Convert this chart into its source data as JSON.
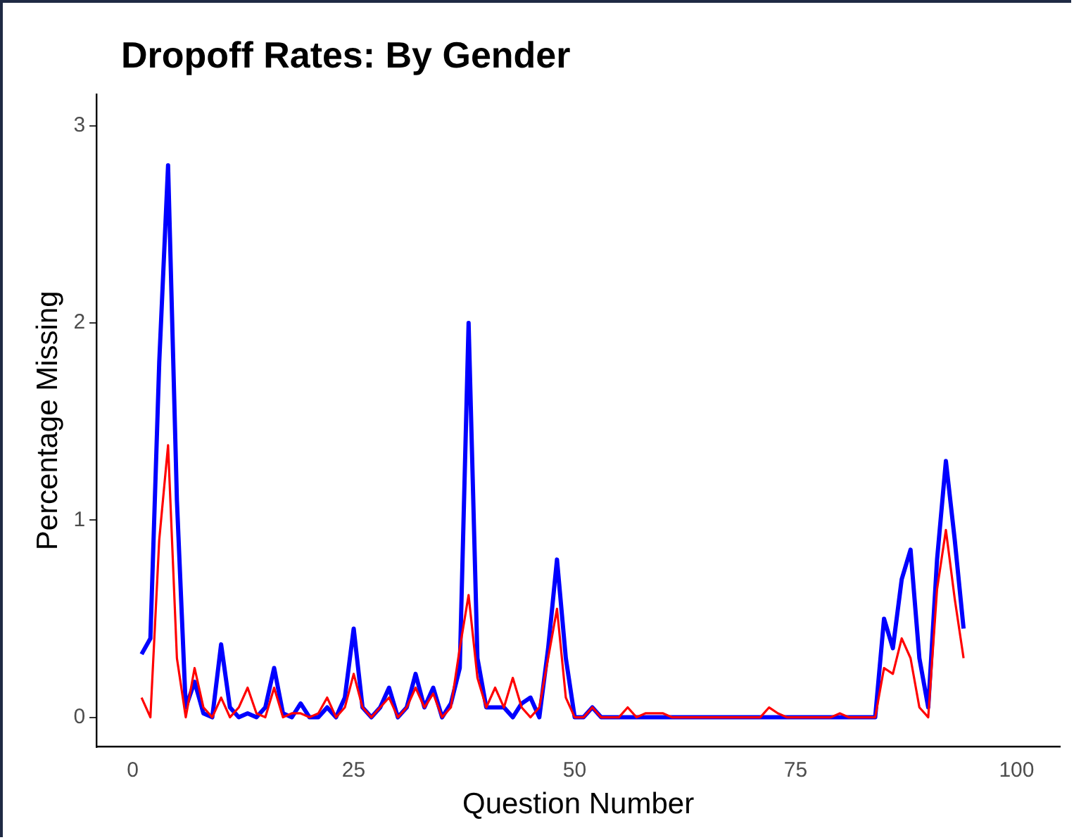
{
  "chart_data": {
    "type": "line",
    "title": "Dropoff Rates: By Gender",
    "xlabel": "Question Number",
    "ylabel": "Percentage Missing",
    "x": [
      1,
      2,
      3,
      4,
      5,
      6,
      7,
      8,
      9,
      10,
      11,
      12,
      13,
      14,
      15,
      16,
      17,
      18,
      19,
      20,
      21,
      22,
      23,
      24,
      25,
      26,
      27,
      28,
      29,
      30,
      31,
      32,
      33,
      34,
      35,
      36,
      37,
      38,
      39,
      40,
      41,
      42,
      43,
      44,
      45,
      46,
      47,
      48,
      49,
      50,
      51,
      52,
      53,
      54,
      55,
      56,
      57,
      58,
      59,
      60,
      61,
      62,
      63,
      64,
      65,
      66,
      67,
      68,
      69,
      70,
      71,
      72,
      73,
      74,
      75,
      76,
      77,
      78,
      79,
      80,
      81,
      82,
      83,
      84,
      85,
      86,
      87,
      88,
      89,
      90,
      91,
      92,
      93,
      94
    ],
    "series": [
      {
        "color": "#ff0000",
        "values": [
          0.1,
          0,
          0.9,
          1.38,
          0.3,
          0,
          0.25,
          0.05,
          0,
          0.1,
          0,
          0.05,
          0.15,
          0.02,
          0,
          0.15,
          0,
          0.02,
          0.02,
          0,
          0.02,
          0.1,
          0,
          0.05,
          0.22,
          0.05,
          0,
          0.05,
          0.1,
          0,
          0.05,
          0.15,
          0.05,
          0.12,
          0,
          0.05,
          0.35,
          0.62,
          0.2,
          0.05,
          0.15,
          0.05,
          0.2,
          0.05,
          0,
          0.05,
          0.3,
          0.55,
          0.1,
          0,
          0,
          0.05,
          0,
          0,
          0,
          0.05,
          0,
          0.02,
          0.02,
          0.02,
          0,
          0,
          0,
          0,
          0,
          0,
          0,
          0,
          0,
          0,
          0,
          0.05,
          0.02,
          0,
          0,
          0,
          0,
          0,
          0,
          0.02,
          0,
          0,
          0,
          0,
          0.25,
          0.22,
          0.4,
          0.3,
          0.05,
          0,
          0.65,
          0.95,
          0.6,
          0.3
        ]
      },
      {
        "color": "#0000ff",
        "values": [
          0.32,
          0.4,
          1.8,
          2.8,
          1.1,
          0.05,
          0.18,
          0.02,
          0,
          0.37,
          0.05,
          0,
          0.02,
          0,
          0.05,
          0.25,
          0.02,
          0,
          0.07,
          0,
          0,
          0.05,
          0,
          0.1,
          0.45,
          0.05,
          0,
          0.05,
          0.15,
          0,
          0.05,
          0.22,
          0.05,
          0.15,
          0,
          0.07,
          0.25,
          2.0,
          0.3,
          0.05,
          0.05,
          0.05,
          0,
          0.07,
          0.1,
          0,
          0.35,
          0.8,
          0.3,
          0,
          0,
          0.05,
          0,
          0,
          0,
          0,
          0,
          0,
          0,
          0,
          0,
          0,
          0,
          0,
          0,
          0,
          0,
          0,
          0,
          0,
          0,
          0,
          0,
          0,
          0,
          0,
          0,
          0,
          0,
          0,
          0,
          0,
          0,
          0,
          0.5,
          0.35,
          0.7,
          0.85,
          0.3,
          0.05,
          0.8,
          1.3,
          0.9,
          0.45
        ]
      }
    ],
    "xlim": [
      -4.1,
      104.9
    ],
    "xticks": [
      0,
      25,
      50,
      75,
      100
    ],
    "ylim": [
      -0.15,
      3.16
    ],
    "yticks": [
      0,
      1,
      2,
      3
    ],
    "grid": false,
    "legend": false,
    "marker": "none",
    "line_style": "solid"
  }
}
